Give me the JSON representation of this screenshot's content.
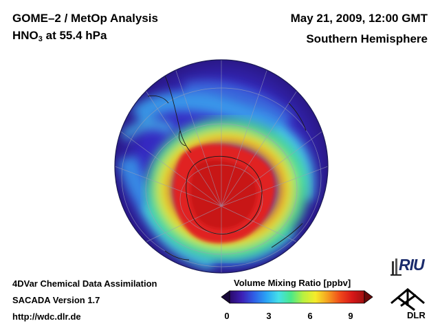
{
  "header": {
    "title_line1": "GOME–2 / MetOp Analysis",
    "title_species": "HNO",
    "title_subscript": "3",
    "title_level": " at 55.4 hPa",
    "datetime": "May 21, 2009, 12:00 GMT",
    "hemisphere": "Southern Hemisphere"
  },
  "footer": {
    "line1": "4DVar Chemical Data Assimilation",
    "line2": "SACADA Version 1.7",
    "line3": "http://wdc.dlr.de"
  },
  "colorbar": {
    "title": "Volume Mixing Ratio [ppbv]",
    "ticks": [
      "0",
      "3",
      "6",
      "9"
    ],
    "range": [
      0,
      10
    ],
    "colors": [
      "#2a0a6a",
      "#3c1fb5",
      "#2f5fe6",
      "#2aa4f5",
      "#45e0e8",
      "#49e88a",
      "#b8f040",
      "#f5ec2a",
      "#f5a020",
      "#f04a1a",
      "#d81818",
      "#a01010"
    ]
  },
  "logos": {
    "riu": "RIU",
    "dlr": "DLR"
  },
  "map": {
    "projection": "orthographic, south pole centered",
    "variable": "HNO3",
    "units": "ppbv",
    "max_region": "Antarctic polar vortex",
    "colors": {
      "ocean_low": "#3b28c0",
      "mid": "#45d4e8",
      "high": "#e02222",
      "peak": "#c01010",
      "globe_edge": "#2a1888"
    }
  }
}
